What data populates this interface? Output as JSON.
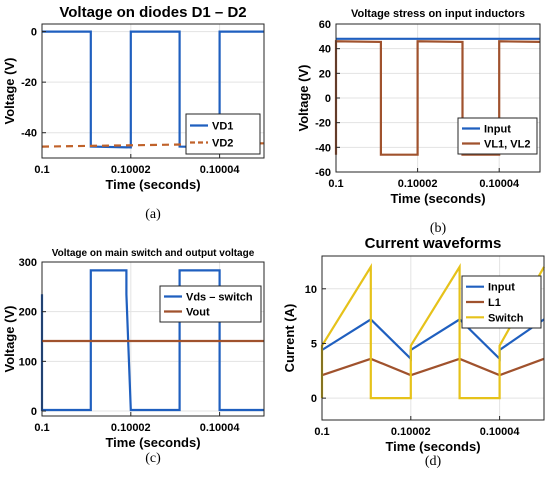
{
  "chart_data": [
    {
      "type": "line",
      "title": "Voltage on diodes D1 – D2",
      "xlabel": "Time (seconds)",
      "ylabel": "Voltage (V)",
      "caption": "(a)",
      "xlim": [
        0.1,
        0.10005
      ],
      "ylim": [
        -50,
        3
      ],
      "xticks": [
        0.1,
        0.10002,
        0.10004
      ],
      "xticklabels": [
        "0.1",
        "0.10002",
        "0.10004"
      ],
      "yticks": [
        -40,
        -20,
        0
      ],
      "yticklabels": [
        "-40",
        "-20",
        "0"
      ],
      "grid": true,
      "legend": "lower-right",
      "series": [
        {
          "name": "VD1",
          "color": "#1f5fbf",
          "dash": "solid",
          "x": [
            0.1,
            0.100011,
            0.100011,
            0.10002,
            0.10002,
            0.100031,
            0.100031,
            0.10004,
            0.10004,
            0.10005
          ],
          "y": [
            0,
            0,
            -45.5,
            -45.8,
            0,
            0,
            -45.5,
            -45.8,
            0,
            0
          ]
        },
        {
          "name": "VD2",
          "color": "#c0622a",
          "dash": "dashed",
          "x": [
            0.1,
            0.10005
          ],
          "y": [
            -45.5,
            -44.2
          ]
        }
      ]
    },
    {
      "type": "line",
      "title": "Voltage stress on input inductors",
      "xlabel": "Time (seconds)",
      "ylabel": "Voltage (V)",
      "caption": "(b)",
      "xlim": [
        0.1,
        0.10005
      ],
      "ylim": [
        -60,
        60
      ],
      "xticks": [
        0.1,
        0.10002,
        0.10004
      ],
      "xticklabels": [
        "0.1",
        "0.10002",
        "0.10004"
      ],
      "yticks": [
        -60,
        -40,
        -20,
        0,
        20,
        40,
        60
      ],
      "yticklabels": [
        "-60",
        "-40",
        "-20",
        "0",
        "20",
        "40",
        "60"
      ],
      "grid": true,
      "legend": "lower-right",
      "series": [
        {
          "name": "Input",
          "color": "#1f5fbf",
          "dash": "solid",
          "x": [
            0.1,
            0.10005
          ],
          "y": [
            48,
            48
          ]
        },
        {
          "name": "VL1, VL2",
          "color": "#a0522d",
          "dash": "solid",
          "x": [
            0.1,
            0.1,
            0.100011,
            0.100011,
            0.10002,
            0.10002,
            0.100031,
            0.100031,
            0.10004,
            0.10004,
            0.10005
          ],
          "y": [
            -46,
            46,
            45.5,
            -46,
            -46,
            46,
            45.5,
            -46,
            -46,
            46,
            45.5
          ]
        }
      ]
    },
    {
      "type": "line",
      "title": "Voltage on main switch and output voltage",
      "xlabel": "Time (seconds)",
      "ylabel": "Voltage (V)",
      "caption": "(c)",
      "xlim": [
        0.1,
        0.10005
      ],
      "ylim": [
        -10,
        300
      ],
      "xticks": [
        0.1,
        0.10002,
        0.10004
      ],
      "xticklabels": [
        "0.1",
        "0.10002",
        "0.10004"
      ],
      "yticks": [
        0,
        100,
        200,
        300
      ],
      "yticklabels": [
        "0",
        "100",
        "200",
        "300"
      ],
      "grid": true,
      "legend": "top-right",
      "series": [
        {
          "name": "Vds – switch",
          "color": "#1f5fbf",
          "dash": "solid",
          "x": [
            0.1,
            0.1,
            0.100001,
            0.100011,
            0.100011,
            0.100019,
            0.100019,
            0.10002,
            0.100031,
            0.100031,
            0.10004,
            0.10004,
            0.10005
          ],
          "y": [
            235,
            2,
            2,
            2,
            283,
            283,
            235,
            2,
            2,
            283,
            283,
            2,
            2
          ]
        },
        {
          "name": "Vout",
          "color": "#a0522d",
          "dash": "solid",
          "x": [
            0.1,
            0.10005
          ],
          "y": [
            141,
            141
          ]
        }
      ]
    },
    {
      "type": "line",
      "title": "Current waveforms",
      "xlabel": "Time (seconds)",
      "ylabel": "Current (A)",
      "caption": "(d)",
      "xlim": [
        0.1,
        0.10005
      ],
      "ylim": [
        -2,
        13
      ],
      "xticks": [
        0.1,
        0.10002,
        0.10004
      ],
      "xticklabels": [
        "0.1",
        "0.10002",
        "0.10004"
      ],
      "yticks": [
        0,
        5,
        10
      ],
      "yticklabels": [
        "0",
        "5",
        "10"
      ],
      "grid": true,
      "legend": "top-right",
      "series": [
        {
          "name": "Input",
          "color": "#1f5fbf",
          "dash": "solid",
          "x": [
            0.1,
            0.100011,
            0.10002,
            0.10002,
            0.100031,
            0.10004,
            0.10004,
            0.10005
          ],
          "y": [
            4.4,
            7.2,
            3.6,
            4.4,
            7.2,
            3.6,
            4.4,
            7.2
          ]
        },
        {
          "name": "L1",
          "color": "#a0522d",
          "dash": "solid",
          "x": [
            0.1,
            0.100011,
            0.10002,
            0.100031,
            0.10004,
            0.10005
          ],
          "y": [
            2.1,
            3.6,
            2.1,
            3.6,
            2.1,
            3.6
          ]
        },
        {
          "name": "Switch",
          "color": "#e6c21a",
          "dash": "solid",
          "x": [
            0.1,
            0.1,
            0.100011,
            0.100011,
            0.10002,
            0.10002,
            0.100031,
            0.100031,
            0.10004,
            0.10004,
            0.10005
          ],
          "y": [
            0,
            4.8,
            12,
            0,
            0,
            4.8,
            12,
            0,
            0,
            4.8,
            12
          ]
        }
      ]
    }
  ]
}
